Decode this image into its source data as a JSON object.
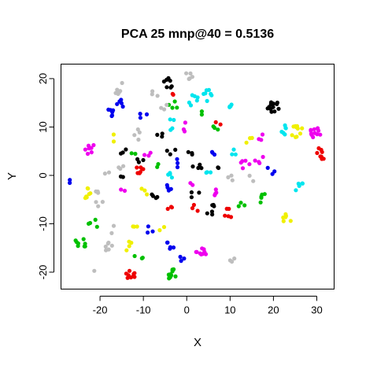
{
  "chart_data": {
    "type": "scatter",
    "title": "PCA 25 mnp@40 = 0.5136",
    "xlabel": "X",
    "ylabel": "Y",
    "xlim": [
      -29,
      34
    ],
    "ylim": [
      -23.5,
      23
    ],
    "x_ticks": [
      -20,
      -10,
      0,
      10,
      20,
      30
    ],
    "y_ticks": [
      -20,
      -10,
      0,
      10,
      20
    ],
    "grid": false,
    "legend": "none",
    "palette": {
      "black": "#000000",
      "red": "#ee0000",
      "green": "#00c000",
      "blue": "#0000ee",
      "cyan": "#00e5ee",
      "magenta": "#ee00ee",
      "yellow": "#f0f000",
      "gray": "#bebebe"
    },
    "clusters": [
      {
        "color": "gray",
        "x": -15.5,
        "y": 18.0,
        "n": 8
      },
      {
        "color": "black",
        "x": -4.5,
        "y": 19.0,
        "n": 7
      },
      {
        "color": "gray",
        "x": 0.5,
        "y": 20.5,
        "n": 5
      },
      {
        "color": "gray",
        "x": -7.0,
        "y": 17.0,
        "n": 3
      },
      {
        "color": "red",
        "x": -3.0,
        "y": 17.0,
        "n": 2
      },
      {
        "color": "blue",
        "x": -17.0,
        "y": 13.0,
        "n": 6
      },
      {
        "color": "blue",
        "x": -15.0,
        "y": 15.0,
        "n": 5
      },
      {
        "color": "blue",
        "x": -10.0,
        "y": 12.5,
        "n": 3
      },
      {
        "color": "green",
        "x": -3.0,
        "y": 14.5,
        "n": 4
      },
      {
        "color": "gray",
        "x": -5.5,
        "y": 14.5,
        "n": 3
      },
      {
        "color": "cyan",
        "x": 1.5,
        "y": 15.5,
        "n": 6
      },
      {
        "color": "cyan",
        "x": 5.0,
        "y": 16.5,
        "n": 7
      },
      {
        "color": "red",
        "x": 7.5,
        "y": 11.5,
        "n": 2
      },
      {
        "color": "green",
        "x": 3.5,
        "y": 12.5,
        "n": 2
      },
      {
        "color": "cyan",
        "x": 10.5,
        "y": 15.0,
        "n": 4
      },
      {
        "color": "black",
        "x": 20.0,
        "y": 14.0,
        "n": 12
      },
      {
        "color": "cyan",
        "x": 22.5,
        "y": 9.5,
        "n": 6
      },
      {
        "color": "yellow",
        "x": 25.5,
        "y": 9.0,
        "n": 10
      },
      {
        "color": "magenta",
        "x": 29.5,
        "y": 9.0,
        "n": 12
      },
      {
        "color": "green",
        "x": 7.0,
        "y": 9.5,
        "n": 3
      },
      {
        "color": "cyan",
        "x": -3.5,
        "y": 10.5,
        "n": 4
      },
      {
        "color": "magenta",
        "x": 0.0,
        "y": 10.0,
        "n": 3
      },
      {
        "color": "black",
        "x": -6.5,
        "y": 8.5,
        "n": 3
      },
      {
        "color": "gray",
        "x": -11.0,
        "y": 8.5,
        "n": 4
      },
      {
        "color": "yellow",
        "x": -17.0,
        "y": 7.5,
        "n": 2
      },
      {
        "color": "red",
        "x": 31.0,
        "y": 4.5,
        "n": 8
      },
      {
        "color": "yellow",
        "x": 14.5,
        "y": 7.5,
        "n": 3
      },
      {
        "color": "magenta",
        "x": 17.5,
        "y": 7.5,
        "n": 3
      },
      {
        "color": "cyan",
        "x": 11.0,
        "y": 5.0,
        "n": 3
      },
      {
        "color": "magenta",
        "x": 16.5,
        "y": 3.5,
        "n": 4
      },
      {
        "color": "magenta",
        "x": 13.5,
        "y": 2.5,
        "n": 5
      },
      {
        "color": "magenta",
        "x": -22.5,
        "y": 5.5,
        "n": 7
      },
      {
        "color": "black",
        "x": -15.0,
        "y": 5.5,
        "n": 3
      },
      {
        "color": "gray",
        "x": -15.5,
        "y": 2.0,
        "n": 3
      },
      {
        "color": "gray",
        "x": -18.5,
        "y": 1.0,
        "n": 2
      },
      {
        "color": "black",
        "x": -15.5,
        "y": -0.5,
        "n": 2
      },
      {
        "color": "green",
        "x": -12.5,
        "y": 4.5,
        "n": 2
      },
      {
        "color": "magenta",
        "x": -9.0,
        "y": 5.0,
        "n": 3
      },
      {
        "color": "black",
        "x": -11.0,
        "y": 3.0,
        "n": 3
      },
      {
        "color": "red",
        "x": -10.5,
        "y": 1.0,
        "n": 7
      },
      {
        "color": "green",
        "x": -7.0,
        "y": 2.0,
        "n": 2
      },
      {
        "color": "black",
        "x": -3.5,
        "y": 5.0,
        "n": 3
      },
      {
        "color": "blue",
        "x": -2.5,
        "y": 2.5,
        "n": 3
      },
      {
        "color": "cyan",
        "x": -4.0,
        "y": -0.5,
        "n": 4
      },
      {
        "color": "black",
        "x": 1.0,
        "y": 4.5,
        "n": 3
      },
      {
        "color": "black",
        "x": 2.5,
        "y": 2.0,
        "n": 4
      },
      {
        "color": "blue",
        "x": 6.5,
        "y": 4.0,
        "n": 3
      },
      {
        "color": "black",
        "x": 8.0,
        "y": 1.5,
        "n": 2
      },
      {
        "color": "gray",
        "x": 10.5,
        "y": 0.0,
        "n": 3
      },
      {
        "color": "cyan",
        "x": 5.0,
        "y": 0.0,
        "n": 3
      },
      {
        "color": "blue",
        "x": 19.5,
        "y": 1.0,
        "n": 3
      },
      {
        "color": "gray",
        "x": 15.0,
        "y": -0.5,
        "n": 2
      },
      {
        "color": "magenta",
        "x": 0.5,
        "y": -1.5,
        "n": 2
      },
      {
        "color": "cyan",
        "x": 26.0,
        "y": -2.5,
        "n": 5
      },
      {
        "color": "blue",
        "x": -27.0,
        "y": -1.0,
        "n": 2
      },
      {
        "color": "yellow",
        "x": -23.0,
        "y": -3.5,
        "n": 7
      },
      {
        "color": "gray",
        "x": -20.5,
        "y": -3.0,
        "n": 3
      },
      {
        "color": "magenta",
        "x": -15.0,
        "y": -3.0,
        "n": 2
      },
      {
        "color": "yellow",
        "x": -9.5,
        "y": -3.0,
        "n": 3
      },
      {
        "color": "black",
        "x": -7.5,
        "y": -4.5,
        "n": 4
      },
      {
        "color": "red",
        "x": -3.5,
        "y": -6.5,
        "n": 3
      },
      {
        "color": "blue",
        "x": -4.0,
        "y": -3.0,
        "n": 4
      },
      {
        "color": "black",
        "x": 2.0,
        "y": -4.0,
        "n": 3
      },
      {
        "color": "red",
        "x": 2.0,
        "y": -7.0,
        "n": 3
      },
      {
        "color": "magenta",
        "x": 7.0,
        "y": -3.5,
        "n": 4
      },
      {
        "color": "black",
        "x": 5.5,
        "y": -7.0,
        "n": 6
      },
      {
        "color": "red",
        "x": 9.5,
        "y": -8.0,
        "n": 5
      },
      {
        "color": "green",
        "x": 12.5,
        "y": -5.5,
        "n": 3
      },
      {
        "color": "green",
        "x": 17.0,
        "y": -5.0,
        "n": 3
      },
      {
        "color": "green",
        "x": 17.5,
        "y": -3.5,
        "n": 2
      },
      {
        "color": "yellow",
        "x": 23.0,
        "y": -9.0,
        "n": 6
      },
      {
        "color": "gray",
        "x": -20.0,
        "y": -5.5,
        "n": 3
      },
      {
        "color": "green",
        "x": -21.5,
        "y": -10.0,
        "n": 4
      },
      {
        "color": "yellow",
        "x": -12.5,
        "y": -10.5,
        "n": 3
      },
      {
        "color": "blue",
        "x": -8.5,
        "y": -11.0,
        "n": 3
      },
      {
        "color": "yellow",
        "x": -6.0,
        "y": -10.5,
        "n": 2
      },
      {
        "color": "gray",
        "x": -17.0,
        "y": -11.0,
        "n": 2
      },
      {
        "color": "green",
        "x": -24.5,
        "y": -14.0,
        "n": 8
      },
      {
        "color": "gray",
        "x": -18.0,
        "y": -15.0,
        "n": 6
      },
      {
        "color": "yellow",
        "x": -13.5,
        "y": -14.5,
        "n": 4
      },
      {
        "color": "blue",
        "x": -4.0,
        "y": -14.5,
        "n": 5
      },
      {
        "color": "magenta",
        "x": 3.5,
        "y": -15.5,
        "n": 10
      },
      {
        "color": "gray",
        "x": 10.5,
        "y": -17.0,
        "n": 3
      },
      {
        "color": "blue",
        "x": -1.5,
        "y": -17.0,
        "n": 3
      },
      {
        "color": "green",
        "x": -11.0,
        "y": -16.5,
        "n": 3
      },
      {
        "color": "gray",
        "x": -21.0,
        "y": -19.0,
        "n": 1
      },
      {
        "color": "red",
        "x": -13.0,
        "y": -21.0,
        "n": 10
      },
      {
        "color": "green",
        "x": -3.0,
        "y": -20.5,
        "n": 10
      }
    ]
  }
}
